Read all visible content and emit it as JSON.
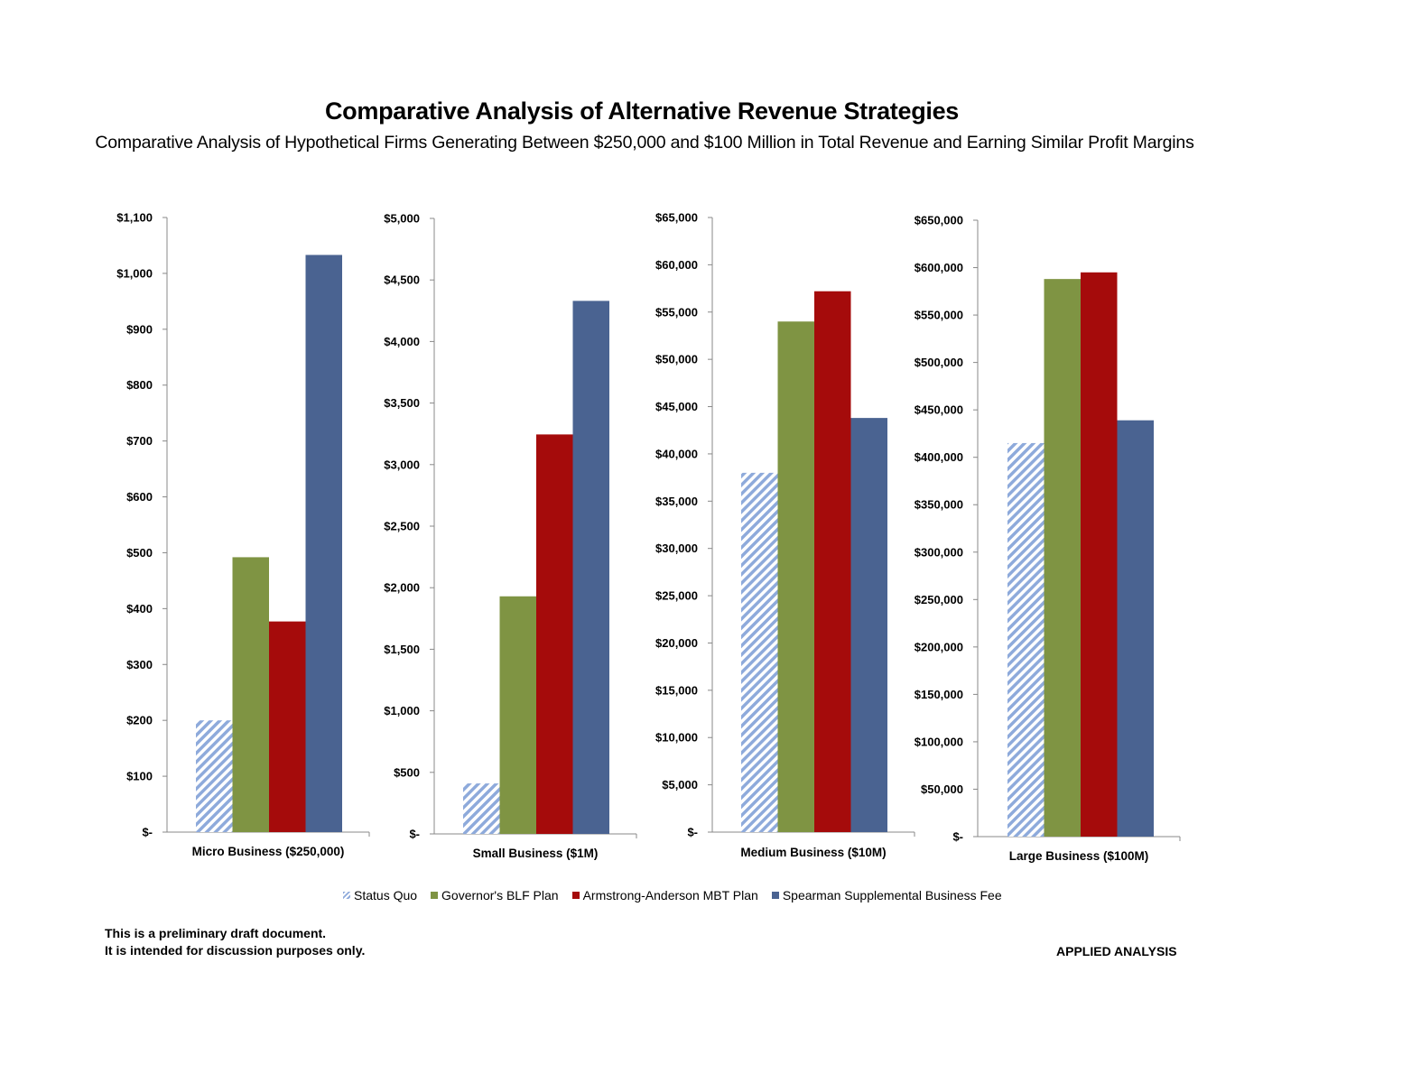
{
  "title": "Comparative Analysis of Alternative Revenue Strategies",
  "subtitle": "Comparative Analysis of Hypothetical Firms Generating Between $250,000 and $100 Million in Total Revenue and Earning Similar Profit Margins",
  "colors": {
    "status_quo": "#8EAADB",
    "governor": "#7F9443",
    "armstrong": "#A50B0B",
    "spearman": "#4A6391"
  },
  "legend": [
    {
      "name": "Status Quo",
      "key": "status_quo"
    },
    {
      "name": "Governor's BLF Plan",
      "key": "governor"
    },
    {
      "name": "Armstrong-Anderson MBT Plan",
      "key": "armstrong"
    },
    {
      "name": "Spearman Supplemental Business Fee",
      "key": "spearman"
    }
  ],
  "chart_data": [
    {
      "type": "bar",
      "category": "Micro Business ($250,000)",
      "ylim": [
        0,
        1100
      ],
      "ticks": [
        "$-",
        "$100",
        "$200",
        "$300",
        "$400",
        "$500",
        "$600",
        "$700",
        "$800",
        "$900",
        "$1,000",
        "$1,100"
      ],
      "series": [
        {
          "name": "Status Quo",
          "value": 200
        },
        {
          "name": "Governor's BLF Plan",
          "value": 492
        },
        {
          "name": "Armstrong-Anderson MBT Plan",
          "value": 377
        },
        {
          "name": "Spearman Supplemental Business Fee",
          "value": 1033
        }
      ]
    },
    {
      "type": "bar",
      "category": "Small Business ($1M)",
      "ylim": [
        0,
        5000
      ],
      "ticks": [
        "$-",
        "$500",
        "$1,000",
        "$1,500",
        "$2,000",
        "$2,500",
        "$3,000",
        "$3,500",
        "$4,000",
        "$4,500",
        "$5,000"
      ],
      "series": [
        {
          "name": "Status Quo",
          "value": 410
        },
        {
          "name": "Governor's BLF Plan",
          "value": 1930
        },
        {
          "name": "Armstrong-Anderson MBT Plan",
          "value": 3245
        },
        {
          "name": "Spearman Supplemental Business Fee",
          "value": 4330
        }
      ]
    },
    {
      "type": "bar",
      "category": "Medium Business ($10M)",
      "ylim": [
        0,
        65000
      ],
      "ticks": [
        "$-",
        "$5,000",
        "$10,000",
        "$15,000",
        "$20,000",
        "$25,000",
        "$30,000",
        "$35,000",
        "$40,000",
        "$45,000",
        "$50,000",
        "$55,000",
        "$60,000",
        "$65,000"
      ],
      "series": [
        {
          "name": "Status Quo",
          "value": 38000
        },
        {
          "name": "Governor's BLF Plan",
          "value": 54000
        },
        {
          "name": "Armstrong-Anderson MBT Plan",
          "value": 57200
        },
        {
          "name": "Spearman Supplemental Business Fee",
          "value": 43800
        }
      ]
    },
    {
      "type": "bar",
      "category": "Large Business ($100M)",
      "ylim": [
        0,
        650000
      ],
      "ticks": [
        "$-",
        "$50,000",
        "$100,000",
        "$150,000",
        "$200,000",
        "$250,000",
        "$300,000",
        "$350,000",
        "$400,000",
        "$450,000",
        "$500,000",
        "$550,000",
        "$600,000",
        "$650,000"
      ],
      "series": [
        {
          "name": "Status Quo",
          "value": 415000
        },
        {
          "name": "Governor's BLF Plan",
          "value": 588000
        },
        {
          "name": "Armstrong-Anderson MBT Plan",
          "value": 595000
        },
        {
          "name": "Spearman Supplemental Business Fee",
          "value": 439000
        }
      ]
    }
  ],
  "footer": {
    "note_line1": "This is a preliminary draft document.",
    "note_line2": "It is intended for discussion purposes only.",
    "brand": "APPLIED ANALYSIS"
  }
}
